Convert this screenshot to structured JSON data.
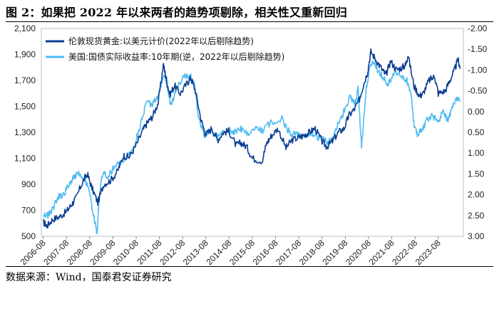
{
  "figure": {
    "title": "图 2：如果把 2022 年以来两者的趋势项剔除，相关性又重新回归",
    "source": "数据来源：Wind，国泰君安证券研究"
  },
  "chart_data": {
    "type": "line",
    "x_tick_labels": [
      "2006-08",
      "2007-08",
      "2008-08",
      "2009-08",
      "2010-08",
      "2011-08",
      "2012-08",
      "2013-08",
      "2014-08",
      "2015-08",
      "2016-08",
      "2017-08",
      "2018-08",
      "2019-08",
      "2020-08",
      "2021-08",
      "2022-08",
      "2023-08"
    ],
    "y_left": {
      "ticks": [
        500,
        700,
        900,
        1100,
        1300,
        1500,
        1700,
        1900,
        2100
      ],
      "tick_labels": [
        "500",
        "700",
        "900",
        "1,100",
        "1,300",
        "1,500",
        "1,700",
        "1,900",
        "2,100"
      ],
      "ylim": [
        500,
        2100
      ]
    },
    "y_right": {
      "ticks": [
        -2.0,
        -1.5,
        -1.0,
        -0.5,
        0.0,
        0.5,
        1.0,
        1.5,
        2.0,
        2.5,
        3.0
      ],
      "tick_labels": [
        "-2.00",
        "-1.50",
        "-1.00",
        "-0.50",
        "0.00",
        "0.50",
        "1.00",
        "1.50",
        "2.00",
        "2.50",
        "3.00"
      ],
      "ylim": [
        3.0,
        -2.0
      ],
      "inverted": true
    },
    "series": [
      {
        "name": "伦敦现货黄金:以美元计价(2022年以后剔除趋势)",
        "axis": "left",
        "color": "#0b3d91",
        "x": [
          2006.5,
          2006.67,
          2006.9,
          2007.2,
          2007.5,
          2007.7,
          2007.9,
          2008.2,
          2008.4,
          2008.6,
          2008.85,
          2009.1,
          2009.4,
          2009.7,
          2009.95,
          2010.2,
          2010.5,
          2010.8,
          2011.0,
          2011.2,
          2011.45,
          2011.67,
          2011.8,
          2011.95,
          2012.15,
          2012.4,
          2012.7,
          2012.85,
          2013.05,
          2013.3,
          2013.5,
          2013.75,
          2014.0,
          2014.25,
          2014.5,
          2014.8,
          2015.0,
          2015.25,
          2015.5,
          2015.92,
          2016.1,
          2016.3,
          2016.6,
          2016.95,
          2017.2,
          2017.5,
          2017.75,
          2017.95,
          2018.2,
          2018.5,
          2018.7,
          2018.95,
          2019.2,
          2019.45,
          2019.65,
          2019.9,
          2020.1,
          2020.2,
          2020.45,
          2020.6,
          2020.85,
          2021.1,
          2021.25,
          2021.45,
          2021.7,
          2021.95,
          2022.1,
          2022.2,
          2022.45,
          2022.7,
          2022.85,
          2023.1,
          2023.35,
          2023.5,
          2023.8,
          2024.0,
          2024.2,
          2024.35,
          2024.45
        ],
        "y": [
          610,
          580,
          630,
          650,
          690,
          740,
          790,
          920,
          980,
          870,
          760,
          900,
          930,
          1000,
          1120,
          1110,
          1200,
          1320,
          1380,
          1420,
          1530,
          1820,
          1710,
          1590,
          1660,
          1600,
          1680,
          1720,
          1620,
          1390,
          1280,
          1330,
          1240,
          1300,
          1310,
          1200,
          1220,
          1190,
          1100,
          1080,
          1210,
          1270,
          1330,
          1180,
          1240,
          1260,
          1280,
          1300,
          1330,
          1230,
          1190,
          1230,
          1300,
          1330,
          1430,
          1480,
          1550,
          1620,
          1760,
          1920,
          1850,
          1780,
          1740,
          1850,
          1780,
          1800,
          1820,
          1900,
          1660,
          1580,
          1600,
          1700,
          1730,
          1600,
          1620,
          1700,
          1780,
          1860,
          1790
        ]
      },
      {
        "name": "美国:国债实际收益率:10年期(逆，2022年以后剔除趋势)",
        "axis": "right",
        "color": "#4dbbf0",
        "x": [
          2006.5,
          2006.7,
          2006.9,
          2007.15,
          2007.4,
          2007.6,
          2007.8,
          2008.0,
          2008.25,
          2008.45,
          2008.65,
          2008.82,
          2008.9,
          2009.05,
          2009.3,
          2009.6,
          2009.9,
          2010.2,
          2010.45,
          2010.7,
          2010.95,
          2011.2,
          2011.5,
          2011.7,
          2011.85,
          2012.0,
          2012.3,
          2012.6,
          2012.85,
          2013.0,
          2013.2,
          2013.45,
          2013.7,
          2014.0,
          2014.3,
          2014.55,
          2014.8,
          2015.0,
          2015.3,
          2015.6,
          2015.95,
          2016.3,
          2016.55,
          2016.8,
          2016.95,
          2017.2,
          2017.45,
          2017.7,
          2017.95,
          2018.2,
          2018.5,
          2018.75,
          2018.95,
          2019.2,
          2019.4,
          2019.7,
          2019.85,
          2019.95,
          2020.05,
          2020.2,
          2020.4,
          2020.55,
          2020.7,
          2020.9,
          2021.1,
          2021.3,
          2021.5,
          2021.7,
          2021.95,
          2022.15,
          2022.35,
          2022.45,
          2022.6,
          2022.8,
          2023.0,
          2023.25,
          2023.5,
          2023.7,
          2023.9,
          2024.1,
          2024.3,
          2024.45
        ],
        "y": [
          2.45,
          2.5,
          2.35,
          2.05,
          2.0,
          1.75,
          1.6,
          1.45,
          1.6,
          1.8,
          2.45,
          2.95,
          2.1,
          1.5,
          1.55,
          1.3,
          1.2,
          1.05,
          0.75,
          0.3,
          -0.25,
          -0.15,
          -0.45,
          -0.95,
          -0.55,
          -0.15,
          -0.65,
          -0.85,
          -0.85,
          -0.65,
          0.2,
          0.55,
          0.45,
          0.6,
          0.5,
          0.45,
          0.5,
          0.4,
          0.55,
          0.4,
          0.45,
          0.25,
          0.25,
          0.15,
          0.4,
          0.55,
          0.55,
          0.65,
          0.55,
          0.6,
          0.65,
          0.75,
          0.6,
          0.3,
          0.05,
          -0.35,
          -0.2,
          -0.25,
          -0.55,
          0.85,
          -0.55,
          -1.05,
          -1.2,
          -1.0,
          -0.85,
          -0.65,
          -0.8,
          -0.95,
          -0.85,
          -0.75,
          -0.3,
          0.3,
          0.55,
          0.45,
          0.2,
          0.1,
          0.25,
          0.0,
          0.2,
          -0.1,
          -0.3,
          -0.25
        ]
      }
    ]
  }
}
